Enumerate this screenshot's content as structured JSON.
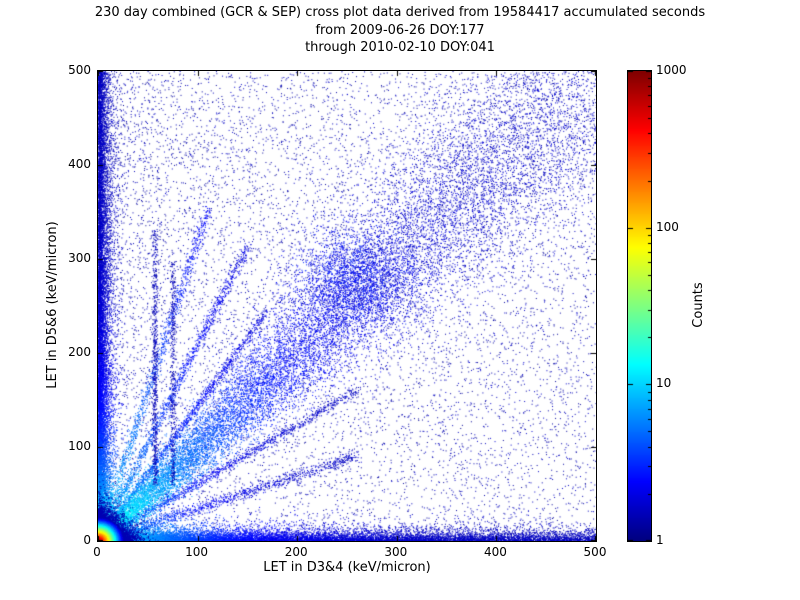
{
  "header": {
    "line1": "230 day combined (GCR & SEP) cross plot data derived from 19584417 accumulated seconds",
    "line2": "from 2009-06-26 DOY:177",
    "line3": "through 2010-02-10 DOY:041"
  },
  "chart_data": {
    "type": "heatmap",
    "title": "230 day combined (GCR & SEP) cross plot data derived from 19584417 accumulated seconds from 2009-06-26 DOY:177 through 2010-02-10 DOY:041",
    "xlabel": "LET in D3&4 (keV/micron)",
    "ylabel": "LET in D5&6 (keV/micron)",
    "xlim": [
      0,
      500
    ],
    "ylim": [
      0,
      500
    ],
    "x_ticks": [
      0,
      100,
      200,
      300,
      400,
      500
    ],
    "y_ticks": [
      0,
      100,
      200,
      300,
      400,
      500
    ],
    "grid": false,
    "colorbar": {
      "label": "Counts",
      "scale": "log",
      "range": [
        1,
        1000
      ],
      "ticks": [
        1,
        10,
        100,
        1000
      ],
      "colormap": "jet"
    },
    "features": [
      "intense hot spot (red/orange/yellow core, counts approaching 1000) at the origin below ~20 keV/micron in both detector pairs",
      "cyan-to-blue band hugging the x-axis (low LET in D5&6) across the full x range",
      "cyan-to-blue dense column hugging the y-axis (low LET in D3&4) across the full y range",
      "broad y=x correlation band of blue/cyan points widening toward (500,500) with a denser blob near (250,280)",
      "several faint straight rays fanning out from the origin above and below the diagonal",
      "sparse dark-blue single-count background points over the whole plane, denser in the upper-left half"
    ],
    "render": {
      "seed": 1337,
      "components": [
        {
          "kind": "background",
          "n": 6500,
          "x_pow": 1.3,
          "y_pow": 0.85
        },
        {
          "kind": "background",
          "n": 3000,
          "x_pow": 1.0,
          "y_pow": 1.0
        },
        {
          "kind": "axis_band",
          "axis": "x",
          "n": 14000,
          "pos_pow": 2.0,
          "width_scale": 5,
          "fade": 90
        },
        {
          "kind": "axis_band",
          "axis": "y",
          "n": 14000,
          "pos_pow": 1.6,
          "width_scale": 4.5,
          "fade": 90
        },
        {
          "kind": "diagonal",
          "n": 16000,
          "t_pow": 1.35,
          "sigma0": 3,
          "sigma_growth": 0.1,
          "fade": 110
        },
        {
          "kind": "ray",
          "slope": 3.2,
          "n": 1100,
          "tmax": 110,
          "sigma": 2.5
        },
        {
          "kind": "ray",
          "slope": 2.1,
          "n": 1300,
          "tmax": 150,
          "sigma": 2.5
        },
        {
          "kind": "ray",
          "slope": 1.45,
          "n": 1100,
          "tmax": 170,
          "sigma": 2.0
        },
        {
          "kind": "ray",
          "slope": 0.62,
          "n": 1200,
          "tmax": 260,
          "sigma": 2.5
        },
        {
          "kind": "ray",
          "slope": 0.35,
          "n": 1200,
          "tmax": 260,
          "sigma": 3.0
        },
        {
          "kind": "vline",
          "x": 57,
          "ymin": 60,
          "ymax": 330,
          "n": 650,
          "sigma": 1.5
        },
        {
          "kind": "vline",
          "x": 75,
          "ymin": 60,
          "ymax": 300,
          "n": 450,
          "sigma": 1.5
        },
        {
          "kind": "blob",
          "cx": 255,
          "cy": 278,
          "sx": 28,
          "sy": 26,
          "n": 1800
        },
        {
          "kind": "hotspot",
          "n": 26000,
          "scale": 7,
          "color_radius": 26
        }
      ]
    }
  }
}
